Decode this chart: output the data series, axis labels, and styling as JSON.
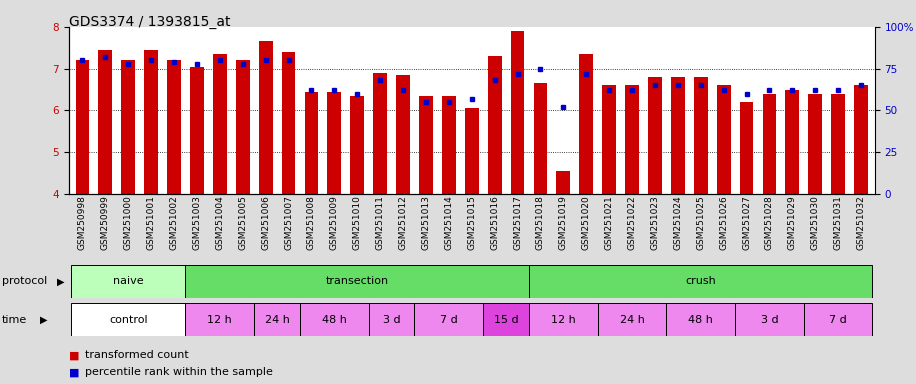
{
  "title": "GDS3374 / 1393815_at",
  "samples": [
    "GSM250998",
    "GSM250999",
    "GSM251000",
    "GSM251001",
    "GSM251002",
    "GSM251003",
    "GSM251004",
    "GSM251005",
    "GSM251006",
    "GSM251007",
    "GSM251008",
    "GSM251009",
    "GSM251010",
    "GSM251011",
    "GSM251012",
    "GSM251013",
    "GSM251014",
    "GSM251015",
    "GSM251016",
    "GSM251017",
    "GSM251018",
    "GSM251019",
    "GSM251020",
    "GSM251021",
    "GSM251022",
    "GSM251023",
    "GSM251024",
    "GSM251025",
    "GSM251026",
    "GSM251027",
    "GSM251028",
    "GSM251029",
    "GSM251030",
    "GSM251031",
    "GSM251032"
  ],
  "bar_values": [
    7.2,
    7.45,
    7.2,
    7.45,
    7.2,
    7.05,
    7.35,
    7.2,
    7.65,
    7.4,
    6.45,
    6.45,
    6.35,
    6.9,
    6.85,
    6.35,
    6.35,
    6.05,
    7.3,
    7.9,
    6.65,
    4.55,
    7.35,
    6.6,
    6.6,
    6.8,
    6.8,
    6.8,
    6.6,
    6.2,
    6.4,
    6.5,
    6.4,
    6.4,
    6.6
  ],
  "percentile_values": [
    80,
    82,
    78,
    80,
    79,
    78,
    80,
    78,
    80,
    80,
    62,
    62,
    60,
    68,
    62,
    55,
    55,
    57,
    68,
    72,
    75,
    52,
    72,
    62,
    62,
    65,
    65,
    65,
    62,
    60,
    62,
    62,
    62,
    62,
    65
  ],
  "ylim": [
    4,
    8
  ],
  "yticks_left": [
    4,
    5,
    6,
    7,
    8
  ],
  "yticks_right": [
    0,
    25,
    50,
    75,
    100
  ],
  "bar_color": "#cc0000",
  "percentile_color": "#0000cc",
  "bar_width": 0.6,
  "proto_defs": [
    {
      "label": "naive",
      "start": 0,
      "end": 4,
      "color": "#bbffbb"
    },
    {
      "label": "transection",
      "start": 5,
      "end": 19,
      "color": "#66dd66"
    },
    {
      "label": "crush",
      "start": 20,
      "end": 34,
      "color": "#66dd66"
    }
  ],
  "time_defs": [
    {
      "label": "control",
      "start": 0,
      "end": 4,
      "color": "#ffffff"
    },
    {
      "label": "12 h",
      "start": 5,
      "end": 7,
      "color": "#ee88ee"
    },
    {
      "label": "24 h",
      "start": 8,
      "end": 9,
      "color": "#ee88ee"
    },
    {
      "label": "48 h",
      "start": 10,
      "end": 12,
      "color": "#ee88ee"
    },
    {
      "label": "3 d",
      "start": 13,
      "end": 14,
      "color": "#ee88ee"
    },
    {
      "label": "7 d",
      "start": 15,
      "end": 17,
      "color": "#ee88ee"
    },
    {
      "label": "15 d",
      "start": 18,
      "end": 19,
      "color": "#dd44dd"
    },
    {
      "label": "12 h",
      "start": 20,
      "end": 22,
      "color": "#ee88ee"
    },
    {
      "label": "24 h",
      "start": 23,
      "end": 25,
      "color": "#ee88ee"
    },
    {
      "label": "48 h",
      "start": 26,
      "end": 28,
      "color": "#ee88ee"
    },
    {
      "label": "3 d",
      "start": 29,
      "end": 31,
      "color": "#ee88ee"
    },
    {
      "label": "7 d",
      "start": 32,
      "end": 34,
      "color": "#ee88ee"
    }
  ],
  "fig_bg": "#dddddd",
  "plot_bg": "#ffffff",
  "title_fontsize": 10,
  "tick_fontsize": 6.5,
  "label_fontsize": 8,
  "row_label_fontsize": 8,
  "legend_fontsize": 8
}
